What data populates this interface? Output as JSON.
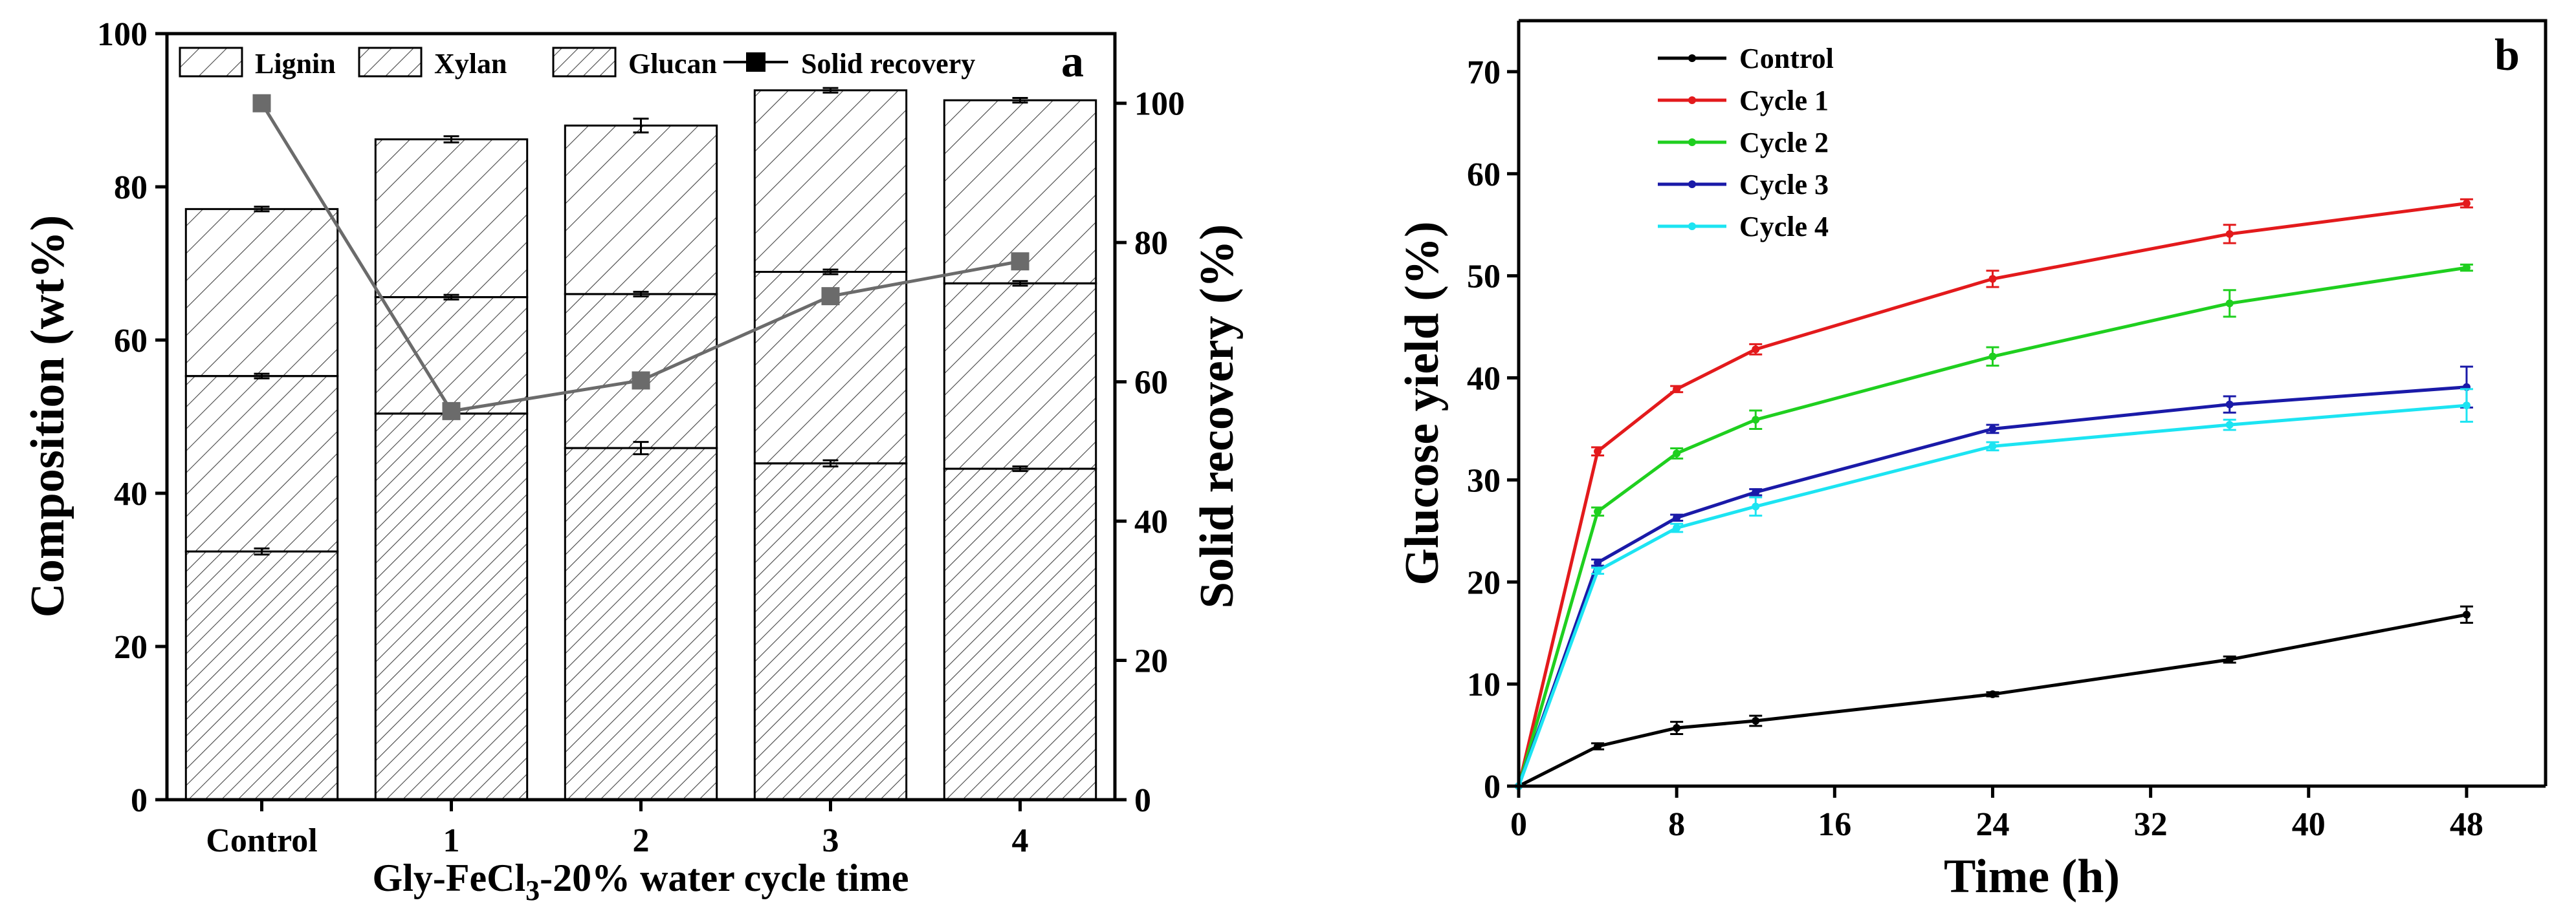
{
  "chart_data": [
    {
      "type": "bar",
      "subtype": "stacked bar with line on secondary axis",
      "panel_label": "a",
      "categories": [
        "Control",
        "1",
        "2",
        "3",
        "4"
      ],
      "xlabel_parts": {
        "before": "Gly-FeCl",
        "sub": "3",
        "after": "-20% water  cycle time"
      },
      "ylabel": "Composition (wt%)",
      "y2label": "Solid recovery (%)",
      "ylim": [
        0,
        100
      ],
      "y2lim": [
        0,
        110
      ],
      "yticks": [
        0,
        20,
        40,
        60,
        80,
        100
      ],
      "y2ticks": [
        0,
        20,
        40,
        60,
        80,
        100
      ],
      "series": [
        {
          "name": "Glucan",
          "values": [
            32.4,
            50.4,
            45.9,
            43.9,
            43.2
          ],
          "errors": [
            0.4,
            0.3,
            0.8,
            0.4,
            0.3
          ],
          "pattern": "dense-hatch"
        },
        {
          "name": "Xylan",
          "values": [
            22.9,
            15.2,
            20.1,
            25.0,
            24.2
          ],
          "errors": [
            0.3,
            0.3,
            0.3,
            0.3,
            0.3
          ],
          "pattern": "hatch"
        },
        {
          "name": "Lignin",
          "values": [
            21.8,
            20.6,
            22.0,
            23.7,
            23.9
          ],
          "errors": [
            0.3,
            0.4,
            0.9,
            0.3,
            0.3
          ],
          "pattern": "wide-hatch"
        }
      ],
      "line_series": {
        "name": "Solid recovery",
        "axis": "right",
        "values": [
          100,
          55.8,
          60.2,
          72.3,
          77.3
        ],
        "color": "#6b6b6b"
      },
      "legend": [
        "Lignin",
        "Xylan",
        "Glucan",
        "Solid recovery"
      ],
      "legend_position": "top"
    },
    {
      "type": "line",
      "panel_label": "b",
      "xlabel": "Time (h)",
      "ylabel": "Glucose yield (%)",
      "xlim": [
        0,
        52
      ],
      "ylim": [
        0,
        75
      ],
      "xticks": [
        0,
        8,
        16,
        24,
        32,
        40,
        48
      ],
      "yticks": [
        0,
        10,
        20,
        30,
        40,
        50,
        60,
        70
      ],
      "x": [
        0,
        4,
        8,
        12,
        24,
        36,
        48
      ],
      "series": [
        {
          "name": "Control",
          "color": "#000000",
          "values": [
            0,
            3.9,
            5.7,
            6.4,
            9.0,
            12.4,
            16.8
          ],
          "errors": [
            0,
            0.3,
            0.6,
            0.5,
            0.2,
            0.3,
            0.8
          ]
        },
        {
          "name": "Cycle 1",
          "color": "#e31a1c",
          "values": [
            0,
            32.8,
            38.9,
            42.8,
            49.7,
            54.1,
            57.1
          ],
          "errors": [
            0,
            0.4,
            0.3,
            0.5,
            0.8,
            0.9,
            0.4
          ]
        },
        {
          "name": "Cycle 2",
          "color": "#1fcf1f",
          "values": [
            0,
            26.9,
            32.6,
            35.9,
            42.1,
            47.3,
            50.8
          ],
          "errors": [
            0,
            0.4,
            0.5,
            0.9,
            0.9,
            1.3,
            0.3
          ]
        },
        {
          "name": "Cycle 3",
          "color": "#1a1aa8",
          "values": [
            0,
            21.9,
            26.3,
            28.8,
            35.0,
            37.4,
            39.1
          ],
          "errors": [
            0,
            0.3,
            0.3,
            0.3,
            0.4,
            0.8,
            2.0
          ]
        },
        {
          "name": "Cycle 4",
          "color": "#1ce4f2",
          "values": [
            0,
            21.1,
            25.3,
            27.4,
            33.3,
            35.4,
            37.3
          ],
          "errors": [
            0,
            0.3,
            0.4,
            0.9,
            0.4,
            0.5,
            1.6
          ]
        }
      ],
      "legend_position": "top-left"
    }
  ]
}
